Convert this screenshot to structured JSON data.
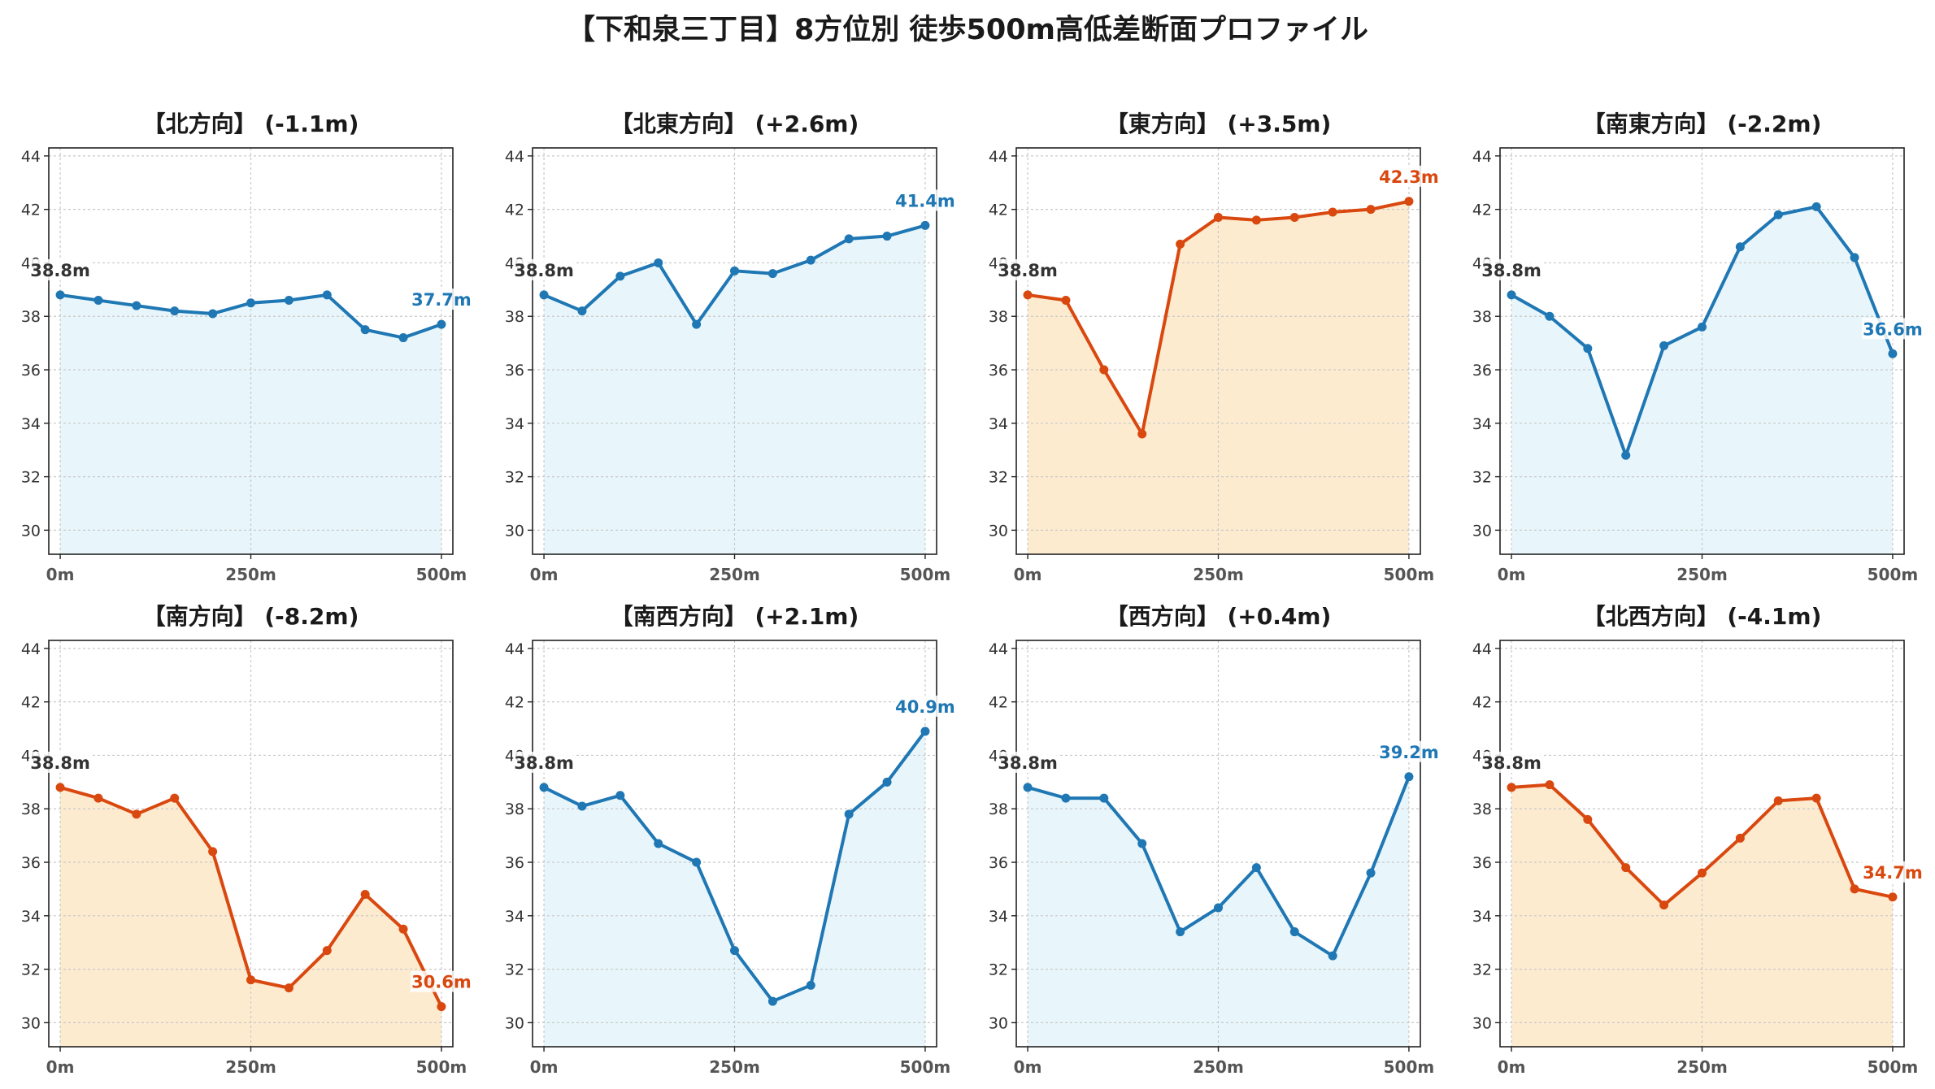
{
  "title": "【下和泉三丁目】8方位別 徒歩500m高低差断面プロファイル",
  "colors": {
    "rise_line": "#1f77b4",
    "rise_fill": "#e8f6fb",
    "fall_line": "#d9480f",
    "fall_fill": "#fdebd0",
    "start_label": "#333333",
    "grid": "#c8c8c8"
  },
  "chart_data": [
    {
      "type": "line",
      "title": "【北方向】 (-1.1m)",
      "trend": "up",
      "x": [
        0,
        50,
        100,
        150,
        200,
        250,
        300,
        350,
        400,
        450,
        500
      ],
      "y": [
        38.8,
        38.6,
        38.4,
        38.2,
        38.1,
        38.5,
        38.6,
        38.8,
        37.5,
        37.2,
        37.7
      ],
      "start_label": "38.8m",
      "end_label": "37.7m",
      "xticks": [
        "0m",
        "250m",
        "500m"
      ],
      "yticks": [
        30,
        32,
        34,
        36,
        38,
        40,
        42,
        44
      ],
      "ylim": [
        29.1,
        44.3
      ],
      "xlim": [
        -15,
        515
      ],
      "grid": true
    },
    {
      "type": "line",
      "title": "【北東方向】 (+2.6m)",
      "trend": "up",
      "x": [
        0,
        50,
        100,
        150,
        200,
        250,
        300,
        350,
        400,
        450,
        500
      ],
      "y": [
        38.8,
        38.2,
        39.5,
        40.0,
        37.7,
        39.7,
        39.6,
        40.1,
        40.9,
        41.0,
        41.4
      ],
      "start_label": "38.8m",
      "end_label": "41.4m",
      "xticks": [
        "0m",
        "250m",
        "500m"
      ],
      "yticks": [
        30,
        32,
        34,
        36,
        38,
        40,
        42,
        44
      ],
      "ylim": [
        29.1,
        44.3
      ],
      "xlim": [
        -15,
        515
      ],
      "grid": true
    },
    {
      "type": "line",
      "title": "【東方向】 (+3.5m)",
      "trend": "down",
      "x": [
        0,
        50,
        100,
        150,
        200,
        250,
        300,
        350,
        400,
        450,
        500
      ],
      "y": [
        38.8,
        38.6,
        36.0,
        33.6,
        40.7,
        41.7,
        41.6,
        41.7,
        41.9,
        42.0,
        42.3
      ],
      "start_label": "38.8m",
      "end_label": "42.3m",
      "xticks": [
        "0m",
        "250m",
        "500m"
      ],
      "yticks": [
        30,
        32,
        34,
        36,
        38,
        40,
        42,
        44
      ],
      "ylim": [
        29.1,
        44.3
      ],
      "xlim": [
        -15,
        515
      ],
      "grid": true
    },
    {
      "type": "line",
      "title": "【南東方向】 (-2.2m)",
      "trend": "up",
      "x": [
        0,
        50,
        100,
        150,
        200,
        250,
        300,
        350,
        400,
        450,
        500
      ],
      "y": [
        38.8,
        38.0,
        36.8,
        32.8,
        36.9,
        37.6,
        40.6,
        41.8,
        42.1,
        40.2,
        36.6
      ],
      "start_label": "38.8m",
      "end_label": "36.6m",
      "xticks": [
        "0m",
        "250m",
        "500m"
      ],
      "yticks": [
        30,
        32,
        34,
        36,
        38,
        40,
        42,
        44
      ],
      "ylim": [
        29.1,
        44.3
      ],
      "xlim": [
        -15,
        515
      ],
      "grid": true
    },
    {
      "type": "line",
      "title": "【南方向】 (-8.2m)",
      "trend": "down",
      "x": [
        0,
        50,
        100,
        150,
        200,
        250,
        300,
        350,
        400,
        450,
        500
      ],
      "y": [
        38.8,
        38.4,
        37.8,
        38.4,
        36.4,
        31.6,
        31.3,
        32.7,
        34.8,
        33.5,
        30.6
      ],
      "start_label": "38.8m",
      "end_label": "30.6m",
      "xticks": [
        "0m",
        "250m",
        "500m"
      ],
      "yticks": [
        30,
        32,
        34,
        36,
        38,
        40,
        42,
        44
      ],
      "ylim": [
        29.1,
        44.3
      ],
      "xlim": [
        -15,
        515
      ],
      "grid": true
    },
    {
      "type": "line",
      "title": "【南西方向】 (+2.1m)",
      "trend": "up",
      "x": [
        0,
        50,
        100,
        150,
        200,
        250,
        300,
        350,
        400,
        450,
        500
      ],
      "y": [
        38.8,
        38.1,
        38.5,
        36.7,
        36.0,
        32.7,
        30.8,
        31.4,
        37.8,
        39.0,
        40.9
      ],
      "start_label": "38.8m",
      "end_label": "40.9m",
      "xticks": [
        "0m",
        "250m",
        "500m"
      ],
      "yticks": [
        30,
        32,
        34,
        36,
        38,
        40,
        42,
        44
      ],
      "ylim": [
        29.1,
        44.3
      ],
      "xlim": [
        -15,
        515
      ],
      "grid": true
    },
    {
      "type": "line",
      "title": "【西方向】 (+0.4m)",
      "trend": "up",
      "x": [
        0,
        50,
        100,
        150,
        200,
        250,
        300,
        350,
        400,
        450,
        500
      ],
      "y": [
        38.8,
        38.4,
        38.4,
        36.7,
        33.4,
        34.3,
        35.8,
        33.4,
        32.5,
        35.6,
        39.2
      ],
      "start_label": "38.8m",
      "end_label": "39.2m",
      "xticks": [
        "0m",
        "250m",
        "500m"
      ],
      "yticks": [
        30,
        32,
        34,
        36,
        38,
        40,
        42,
        44
      ],
      "ylim": [
        29.1,
        44.3
      ],
      "xlim": [
        -15,
        515
      ],
      "grid": true
    },
    {
      "type": "line",
      "title": "【北西方向】 (-4.1m)",
      "trend": "down",
      "x": [
        0,
        50,
        100,
        150,
        200,
        250,
        300,
        350,
        400,
        450,
        500
      ],
      "y": [
        38.8,
        38.9,
        37.6,
        35.8,
        34.4,
        35.6,
        36.9,
        38.3,
        38.4,
        35.0,
        34.7
      ],
      "start_label": "38.8m",
      "end_label": "34.7m",
      "xticks": [
        "0m",
        "250m",
        "500m"
      ],
      "yticks": [
        30,
        32,
        34,
        36,
        38,
        40,
        42,
        44
      ],
      "ylim": [
        29.1,
        44.3
      ],
      "xlim": [
        -15,
        515
      ],
      "grid": true
    }
  ]
}
